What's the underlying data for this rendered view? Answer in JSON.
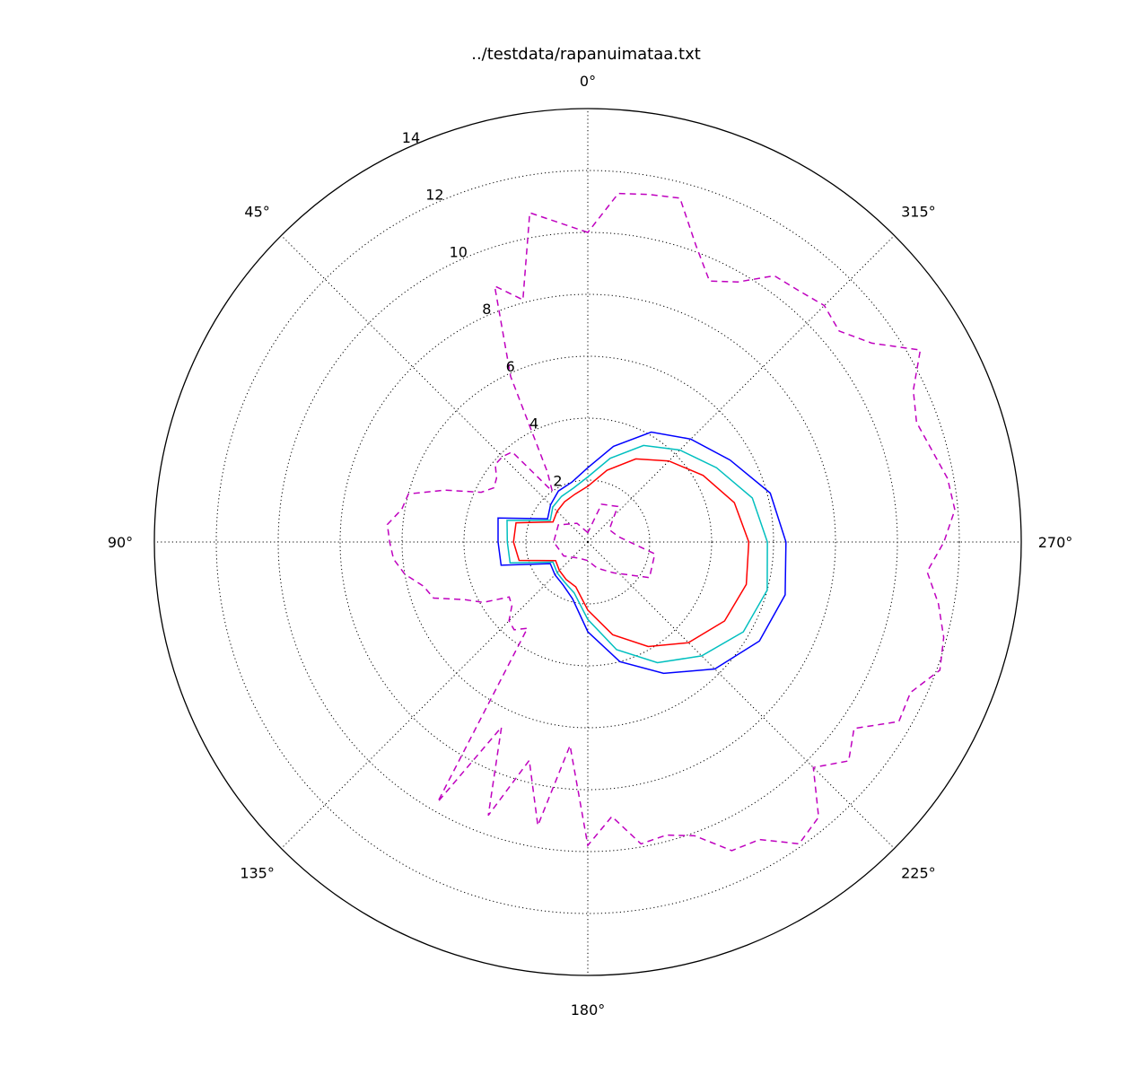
{
  "chart_data": {
    "type": "polar-line",
    "title": "../testdata/rapanuimataa.txt",
    "theta_direction": "counterclockwise",
    "theta_zero": "top",
    "theta_ticks": [
      "0°",
      "45°",
      "90°",
      "135°",
      "180°",
      "225°",
      "270°",
      "315°"
    ],
    "theta_tick_values": [
      0,
      45,
      90,
      135,
      180,
      225,
      270,
      315
    ],
    "r_ticks": [
      "2",
      "4",
      "6",
      "8",
      "10",
      "12",
      "14"
    ],
    "r_tick_values": [
      2,
      4,
      6,
      8,
      10,
      12,
      14
    ],
    "rlim": [
      0,
      14
    ],
    "grid": true,
    "series": [
      {
        "color": "#0000ff",
        "style": "solid",
        "theta": [
          0,
          15,
          30,
          45,
          60,
          75,
          90,
          105,
          120,
          135,
          150,
          165,
          180,
          195,
          210,
          225,
          240,
          255,
          270,
          285,
          300,
          315,
          330,
          345
        ],
        "r": [
          2.4,
          2.0,
          1.9,
          1.7,
          1.5,
          3.0,
          2.9,
          2.9,
          1.4,
          1.5,
          1.6,
          1.9,
          2.9,
          4.0,
          4.9,
          5.8,
          6.4,
          6.6,
          6.4,
          6.1,
          5.3,
          4.7,
          4.1,
          3.2
        ]
      },
      {
        "color": "#00bfbf",
        "style": "solid",
        "theta": [
          0,
          15,
          30,
          45,
          60,
          75,
          90,
          105,
          120,
          135,
          150,
          165,
          180,
          195,
          210,
          225,
          240,
          255,
          270,
          285,
          300,
          315,
          330,
          345
        ],
        "r": [
          2.1,
          1.8,
          1.7,
          1.6,
          1.4,
          2.7,
          2.6,
          2.6,
          1.3,
          1.4,
          1.5,
          1.7,
          2.5,
          3.6,
          4.5,
          5.2,
          5.8,
          6.0,
          5.8,
          5.5,
          4.8,
          4.2,
          3.6,
          2.8
        ]
      },
      {
        "color": "#ff0000",
        "style": "solid",
        "theta": [
          0,
          15,
          30,
          45,
          60,
          75,
          90,
          105,
          120,
          135,
          150,
          165,
          180,
          195,
          210,
          225,
          240,
          255,
          270,
          285,
          300,
          315,
          330,
          345
        ],
        "r": [
          1.8,
          1.6,
          1.5,
          1.4,
          1.3,
          2.4,
          2.4,
          2.3,
          1.2,
          1.3,
          1.4,
          1.5,
          2.2,
          3.1,
          3.9,
          4.6,
          5.1,
          5.3,
          5.2,
          4.9,
          4.3,
          3.7,
          3.1,
          2.4
        ]
      },
      {
        "color": "#bf00bf",
        "style": "dashed",
        "theta": [
          0,
          10,
          15,
          20,
          25,
          30,
          35,
          40,
          45,
          50,
          55,
          60,
          65,
          70,
          75,
          80,
          85,
          90,
          95,
          100,
          105,
          110,
          115,
          120,
          125,
          130,
          135,
          140,
          145,
          150,
          155,
          160,
          165,
          170,
          175,
          180,
          185,
          190,
          195,
          200,
          205,
          210,
          215,
          220,
          225,
          230,
          235,
          240,
          245,
          250,
          255,
          260,
          265,
          270,
          275,
          280,
          285,
          290,
          295,
          300,
          305,
          310,
          315,
          320,
          325,
          330,
          335,
          340,
          345,
          350,
          355
        ],
        "r": [
          10.0,
          10.8,
          8.1,
          8.8,
          5.9,
          2.6,
          2.0,
          3.8,
          3.9,
          3.9,
          3.6,
          3.5,
          3.8,
          4.9,
          6.0,
          6.1,
          6.5,
          6.4,
          6.3,
          6.0,
          5.5,
          5.3,
          4.4,
          3.9,
          3.1,
          3.2,
          3.6,
          3.7,
          3.4,
          9.7,
          6.6,
          9.4,
          7.3,
          9.3,
          6.6,
          9.8,
          8.9,
          9.9,
          9.8,
          10.1,
          11.0,
          11.1,
          11.9,
          11.6,
          10.3,
          11.0,
          10.5,
          11.6,
          11.5,
          12.1,
          11.9,
          11.5,
          11.0,
          11.5,
          11.9,
          11.8,
          11.5,
          11.3,
          11.6,
          12.4,
          11.2,
          10.6,
          10.8,
          10.6,
          10.5,
          9.7,
          9.3,
          10.2,
          11.5,
          11.4,
          11.3
        ]
      },
      {
        "color": "#bf00bf",
        "style": "dashed",
        "theta": [
          0,
          30,
          60,
          90,
          120,
          150,
          180,
          200,
          220,
          240,
          260,
          280,
          300,
          320,
          340
        ],
        "r": [
          0.3,
          0.7,
          1.1,
          1.1,
          0.9,
          0.6,
          0.6,
          0.9,
          1.3,
          2.3,
          2.2,
          1.0,
          0.8,
          1.5,
          1.3
        ]
      }
    ]
  }
}
